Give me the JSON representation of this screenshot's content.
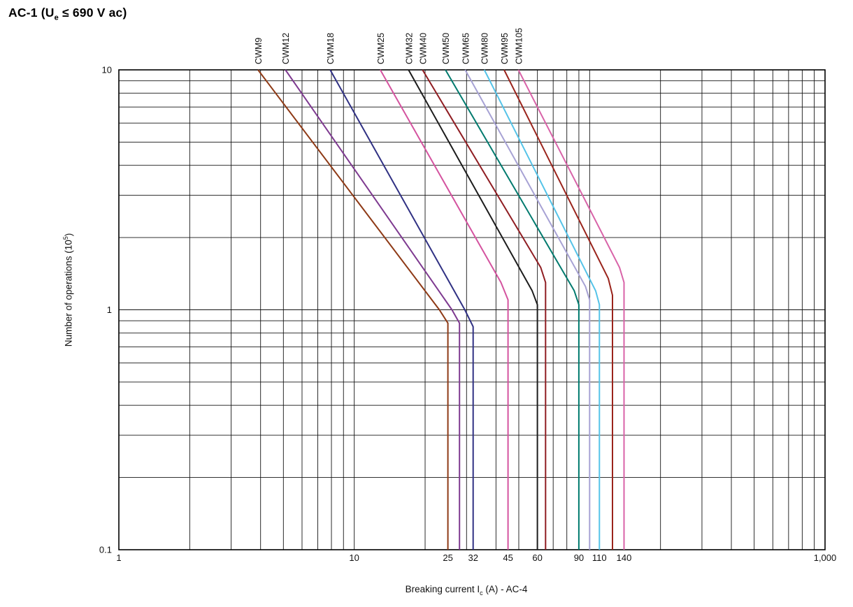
{
  "header": {
    "title_prefix": "AC-1 (U",
    "title_sub": "e",
    "title_suffix": " ≤ 690 V ac)"
  },
  "axes": {
    "y_prefix": "Number of operations (10",
    "y_sup": "5",
    "y_suffix": ")",
    "x_prefix": "Breaking current I",
    "x_sub": "c",
    "x_suffix": " (A) - AC-4"
  },
  "chart_data": {
    "type": "line",
    "x_scale": "log",
    "y_scale": "log",
    "xlim": [
      1,
      1000
    ],
    "ylim": [
      0.1,
      10
    ],
    "grid": true,
    "grid_color": "#141414",
    "border_color": "#000000",
    "x_ticks": [
      {
        "value": 1,
        "label": "1"
      },
      {
        "value": 10,
        "label": "10"
      },
      {
        "value": 25,
        "label": "25"
      },
      {
        "value": 32,
        "label": "32"
      },
      {
        "value": 45,
        "label": "45"
      },
      {
        "value": 60,
        "label": "60"
      },
      {
        "value": 90,
        "label": "90"
      },
      {
        "value": 110,
        "label": "110"
      },
      {
        "value": 140,
        "label": "140"
      },
      {
        "value": 1000,
        "label": "1,000"
      }
    ],
    "y_ticks": [
      {
        "value": 10,
        "label": "10"
      },
      {
        "value": 1,
        "label": "1"
      },
      {
        "value": 0.1,
        "label": "0.1"
      }
    ],
    "series": [
      {
        "name": "CWM9",
        "color": "#8e3a16",
        "points": [
          [
            3.9,
            10
          ],
          [
            23,
            1.0
          ],
          [
            25,
            0.88
          ],
          [
            25,
            0.1
          ]
        ]
      },
      {
        "name": "CWM12",
        "color": "#7e3a90",
        "points": [
          [
            5.1,
            10
          ],
          [
            26,
            1.0
          ],
          [
            28,
            0.88
          ],
          [
            28,
            0.1
          ]
        ]
      },
      {
        "name": "CWM18",
        "color": "#303183",
        "points": [
          [
            7.9,
            10
          ],
          [
            29.5,
            1.0
          ],
          [
            32,
            0.85
          ],
          [
            32,
            0.1
          ]
        ]
      },
      {
        "name": "CWM25",
        "color": "#d4539f",
        "points": [
          [
            12.9,
            10
          ],
          [
            42,
            1.3
          ],
          [
            45,
            1.1
          ],
          [
            45,
            0.1
          ]
        ]
      },
      {
        "name": "CWM32",
        "color": "#1c1c1c",
        "points": [
          [
            17,
            10
          ],
          [
            57,
            1.2
          ],
          [
            60,
            1.05
          ],
          [
            60,
            0.1
          ]
        ]
      },
      {
        "name": "CWM40",
        "color": "#8f1d22",
        "points": [
          [
            19.5,
            10
          ],
          [
            62,
            1.5
          ],
          [
            65,
            1.3
          ],
          [
            65,
            0.1
          ]
        ]
      },
      {
        "name": "CWM50",
        "color": "#007a6e",
        "points": [
          [
            24.4,
            10
          ],
          [
            86,
            1.2
          ],
          [
            90,
            1.05
          ],
          [
            90,
            0.1
          ]
        ]
      },
      {
        "name": "CWM65",
        "color": "#a7a2d4",
        "points": [
          [
            29.6,
            10
          ],
          [
            96,
            1.25
          ],
          [
            100,
            1.1
          ],
          [
            100,
            0.1
          ]
        ]
      },
      {
        "name": "CWM80",
        "color": "#54c3e8",
        "points": [
          [
            35.7,
            10
          ],
          [
            106,
            1.2
          ],
          [
            110,
            1.05
          ],
          [
            110,
            0.1
          ]
        ]
      },
      {
        "name": "CWM95",
        "color": "#9a241c",
        "points": [
          [
            43.3,
            10
          ],
          [
            120,
            1.35
          ],
          [
            125,
            1.15
          ],
          [
            125,
            0.1
          ]
        ]
      },
      {
        "name": "CWM105",
        "color": "#d863a8",
        "points": [
          [
            49.8,
            10
          ],
          [
            134,
            1.5
          ],
          [
            140,
            1.3
          ],
          [
            140,
            0.1
          ]
        ]
      }
    ]
  }
}
